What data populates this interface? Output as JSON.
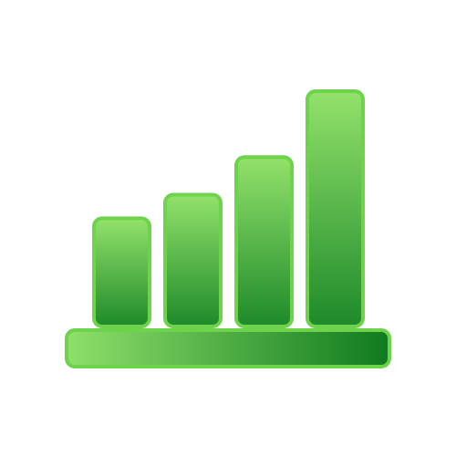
{
  "icon": {
    "name": "bar-chart-growth-icon",
    "bar_count": 4,
    "levels": [
      0.46,
      0.56,
      0.72,
      1.0
    ],
    "colors": {
      "light": "#93e26b",
      "dark": "#1e8a2a",
      "outline": "#6cd34a",
      "base_light": "#8fe06a",
      "base_dark": "#0f7a1f"
    }
  }
}
